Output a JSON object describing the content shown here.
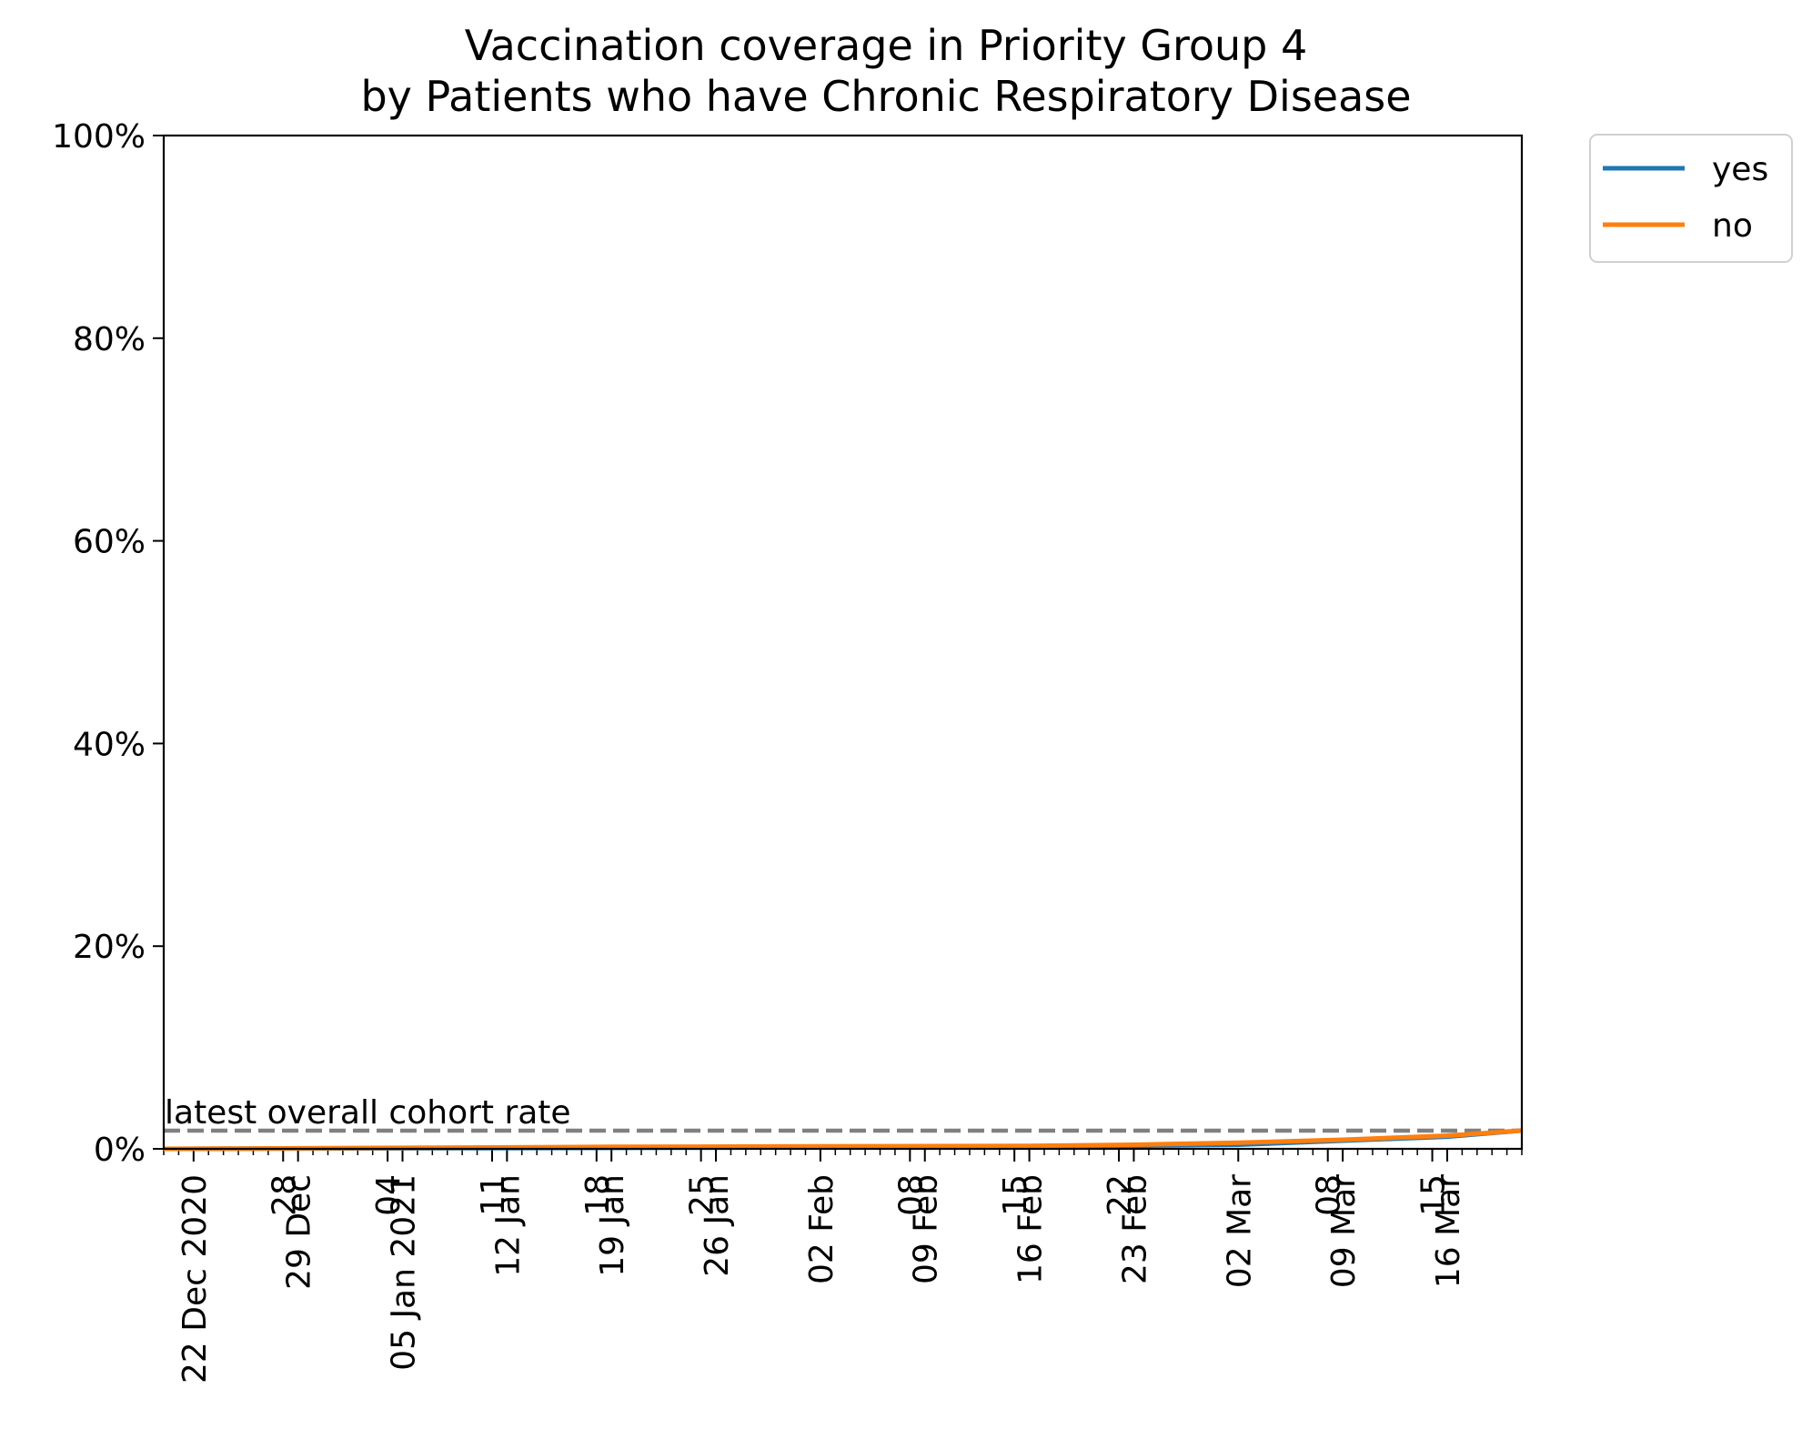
{
  "chart_data": {
    "type": "line",
    "title": "Vaccination coverage in Priority Group 4",
    "subtitle": "by Patients who have Chronic Respiratory Disease",
    "xlabel": "",
    "ylabel": "",
    "x_start": "2020-12-20",
    "x_end": "2021-03-21",
    "ylim": [
      0,
      100
    ],
    "y_ticks": [
      0,
      20,
      40,
      60,
      80,
      100
    ],
    "y_tick_labels": [
      "0%",
      "20%",
      "40%",
      "60%",
      "80%",
      "100%"
    ],
    "x_ticks": [
      {
        "date": "2020-12-22",
        "label": "22 Dec 2020",
        "row": 0
      },
      {
        "date": "2020-12-28",
        "label": "28",
        "row": 0
      },
      {
        "date": "2020-12-29",
        "label": "29 Dec",
        "row": 1
      },
      {
        "date": "2021-01-04",
        "label": "04",
        "row": 0
      },
      {
        "date": "2021-01-05",
        "label": "05 Jan 2021",
        "row": 1
      },
      {
        "date": "2021-01-11",
        "label": "11",
        "row": 0
      },
      {
        "date": "2021-01-12",
        "label": "12 Jan",
        "row": 1
      },
      {
        "date": "2021-01-18",
        "label": "18",
        "row": 0
      },
      {
        "date": "2021-01-19",
        "label": "19 Jan",
        "row": 1
      },
      {
        "date": "2021-01-25",
        "label": "25",
        "row": 0
      },
      {
        "date": "2021-01-26",
        "label": "26 Jan",
        "row": 1
      },
      {
        "date": "2021-02-02",
        "label": "02 Feb",
        "row": 1
      },
      {
        "date": "2021-02-08",
        "label": "08",
        "row": 0
      },
      {
        "date": "2021-02-09",
        "label": "09 Feb",
        "row": 1
      },
      {
        "date": "2021-02-15",
        "label": "15",
        "row": 0
      },
      {
        "date": "2021-02-16",
        "label": "16 Feb",
        "row": 1
      },
      {
        "date": "2021-02-22",
        "label": "22",
        "row": 0
      },
      {
        "date": "2021-02-23",
        "label": "23 Feb",
        "row": 1
      },
      {
        "date": "2021-03-02",
        "label": "02 Mar",
        "row": 1
      },
      {
        "date": "2021-03-08",
        "label": "08",
        "row": 0
      },
      {
        "date": "2021-03-09",
        "label": "09 Mar",
        "row": 1
      },
      {
        "date": "2021-03-15",
        "label": "15",
        "row": 0
      },
      {
        "date": "2021-03-16",
        "label": "16 Mar",
        "row": 1
      }
    ],
    "series": [
      {
        "name": "yes",
        "color": "#1f77b4",
        "points": [
          {
            "x": "2020-12-20",
            "y": 0.0
          },
          {
            "x": "2021-01-19",
            "y": 0.1
          },
          {
            "x": "2021-02-16",
            "y": 0.2
          },
          {
            "x": "2021-03-02",
            "y": 0.4
          },
          {
            "x": "2021-03-16",
            "y": 1.2
          },
          {
            "x": "2021-03-21",
            "y": 1.8
          }
        ]
      },
      {
        "name": "no",
        "color": "#ff7f0e",
        "points": [
          {
            "x": "2020-12-20",
            "y": 0.0
          },
          {
            "x": "2021-01-05",
            "y": 0.1
          },
          {
            "x": "2021-01-19",
            "y": 0.2
          },
          {
            "x": "2021-02-16",
            "y": 0.3
          },
          {
            "x": "2021-02-23",
            "y": 0.4
          },
          {
            "x": "2021-03-02",
            "y": 0.6
          },
          {
            "x": "2021-03-09",
            "y": 0.9
          },
          {
            "x": "2021-03-16",
            "y": 1.3
          },
          {
            "x": "2021-03-21",
            "y": 1.8
          }
        ]
      }
    ],
    "reference_line": {
      "value": 1.8,
      "label": "latest overall cohort rate",
      "color": "#808080",
      "style": "dashed"
    },
    "legend_position": "outside-top-right",
    "grid": false
  }
}
